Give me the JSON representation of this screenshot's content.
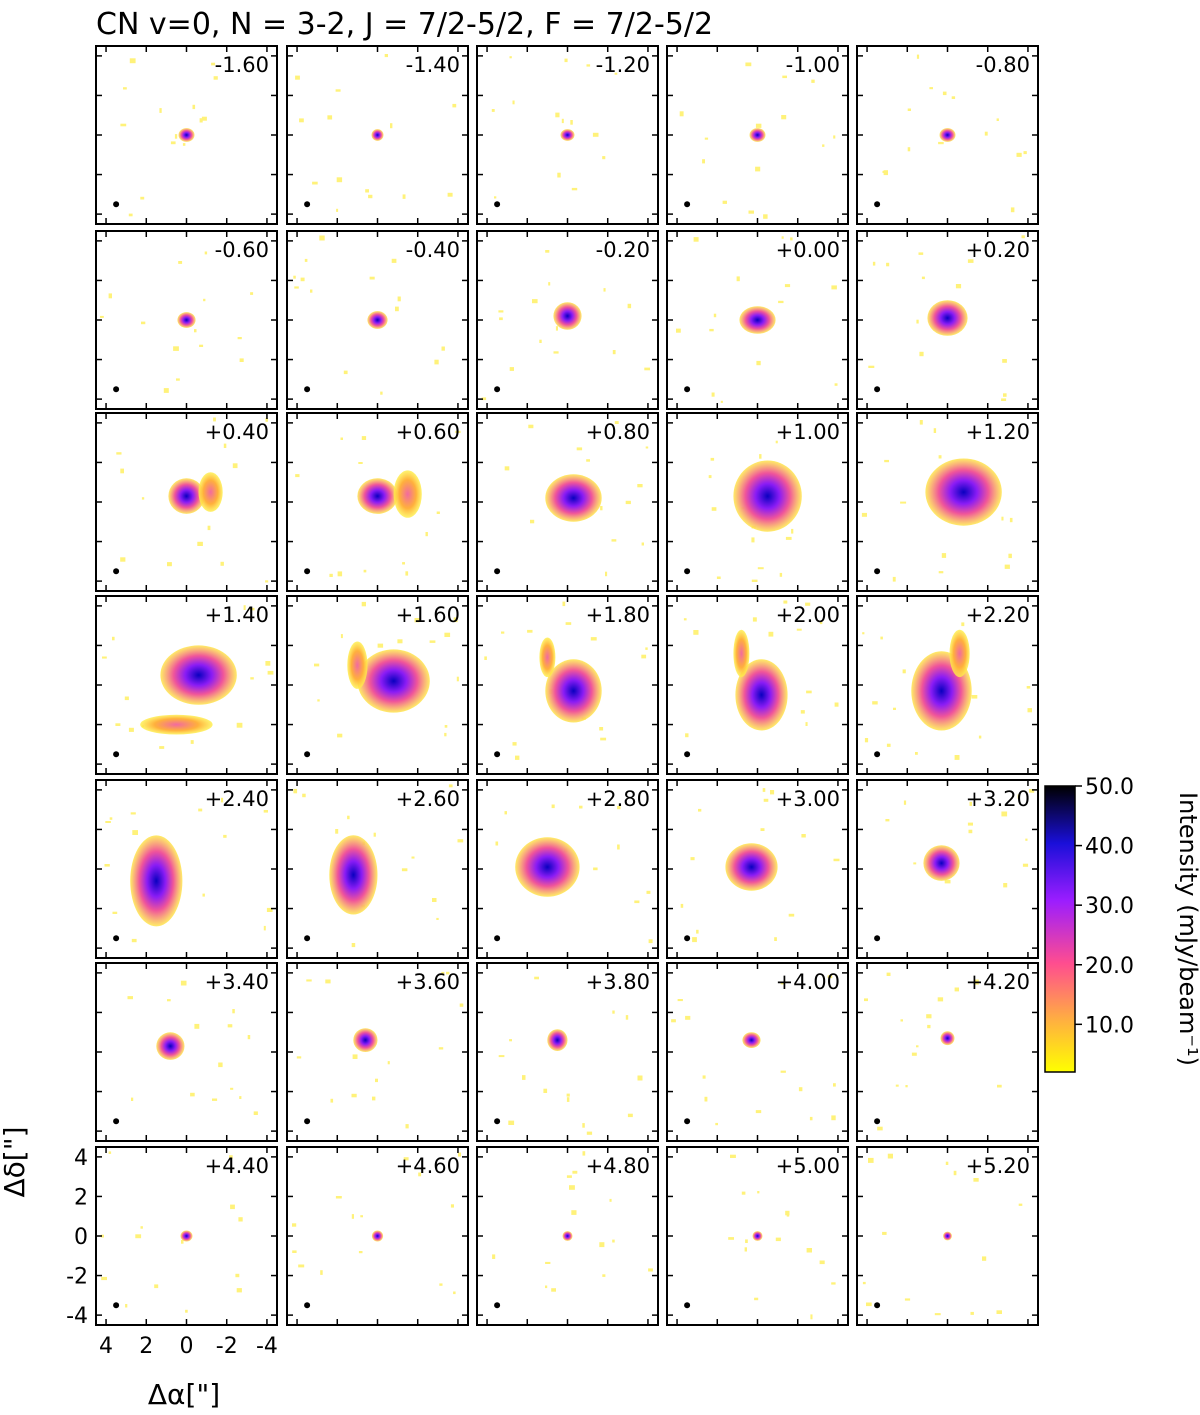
{
  "chart_data": {
    "type": "heatmap",
    "title": "CN v=0, N = 3-2, J = 7/2-5/2, F = 7/2-5/2",
    "xlabel": "Δα[\"]",
    "ylabel": "Δδ[\"]",
    "x_ticks": [
      "4",
      "2",
      "0",
      "-2",
      "-4"
    ],
    "y_ticks": [
      "4",
      "2",
      "0",
      "-2",
      "-4"
    ],
    "x_range": [
      4.5,
      -4.5
    ],
    "y_range": [
      -4.5,
      4.5
    ],
    "velocity_labels": [
      "-1.60",
      "-1.40",
      "-1.20",
      "-1.00",
      "-0.80",
      "-0.60",
      "-0.40",
      "-0.20",
      "+0.00",
      "+0.20",
      "+0.40",
      "+0.60",
      "+0.80",
      "+1.00",
      "+1.20",
      "+1.40",
      "+1.60",
      "+1.80",
      "+2.00",
      "+2.20",
      "+2.40",
      "+2.60",
      "+2.80",
      "+3.00",
      "+3.20",
      "+3.40",
      "+3.60",
      "+3.80",
      "+4.00",
      "+4.20",
      "+4.40",
      "+4.60",
      "+4.80",
      "+5.00",
      "+5.20"
    ],
    "grid_rows": 7,
    "grid_cols": 5,
    "colorbar": {
      "label": "Intensity (mJy/beam⁻¹)",
      "range": [
        2,
        50
      ],
      "ticks": [
        "10.0",
        "20.0",
        "30.0",
        "40.0",
        "50.0"
      ],
      "tick_values": [
        10,
        20,
        30,
        40,
        50
      ],
      "colors": [
        "#ffff00",
        "#ff9933",
        "#ff3399",
        "#9900ff",
        "#0000cc",
        "#000000"
      ]
    },
    "beam": "filled-circle-bottom-left"
  }
}
